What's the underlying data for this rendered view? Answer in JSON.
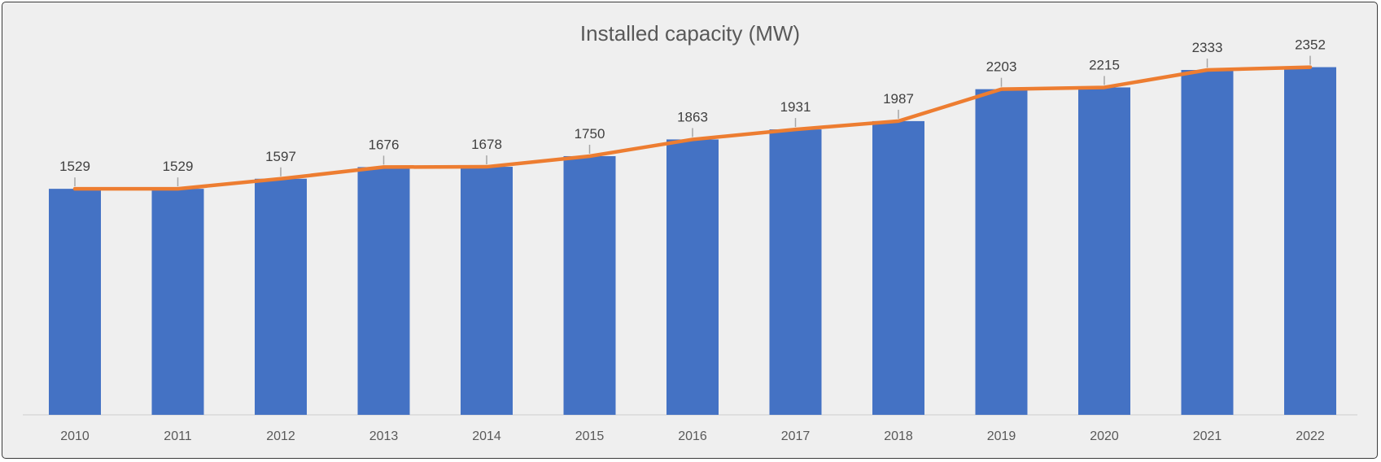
{
  "chart_data": {
    "type": "bar",
    "title": "Installed capacity (MW)",
    "xlabel": "",
    "ylabel": "",
    "categories": [
      "2010",
      "2011",
      "2012",
      "2013",
      "2014",
      "2015",
      "2016",
      "2017",
      "2018",
      "2019",
      "2020",
      "2021",
      "2022"
    ],
    "series": [
      {
        "type": "bar",
        "values": [
          1529,
          1529,
          1597,
          1676,
          1678,
          1750,
          1863,
          1931,
          1987,
          2203,
          2215,
          2333,
          2352
        ],
        "color": "#4472C4"
      },
      {
        "type": "line",
        "values": [
          1529,
          1529,
          1597,
          1676,
          1678,
          1750,
          1863,
          1931,
          1987,
          2203,
          2215,
          2333,
          2352
        ],
        "color": "#ED7D31"
      }
    ],
    "data_labels": [
      "1529",
      "1529",
      "1597",
      "1676",
      "1678",
      "1750",
      "1863",
      "1931",
      "1987",
      "2203",
      "2215",
      "2333",
      "2352"
    ],
    "ylim": [
      0,
      2600
    ],
    "grid": false,
    "legend": "none"
  }
}
